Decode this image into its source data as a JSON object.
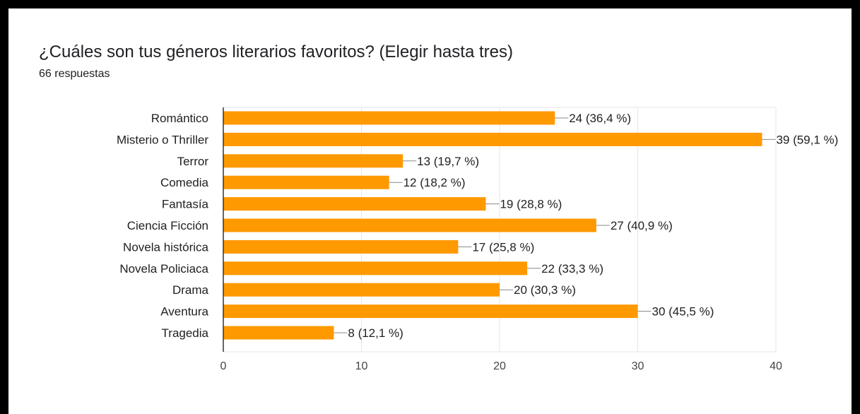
{
  "question": {
    "title": "¿Cuáles son tus géneros literarios favoritos? (Elegir hasta tres)",
    "responses": "66 respuestas"
  },
  "colors": {
    "bar": "#ff9900",
    "background": "#000000",
    "card": "#ffffff",
    "grid": "#e6e6e6",
    "text": "#202124",
    "axis_label": "#444444"
  },
  "chart_data": {
    "type": "bar",
    "orientation": "horizontal",
    "title": "",
    "xlabel": "",
    "ylabel": "",
    "xlim": [
      0,
      40
    ],
    "ticks": [
      0,
      10,
      20,
      30,
      40
    ],
    "grid": true,
    "categories": [
      "Romántico",
      "Misterio o Thriller",
      "Terror",
      "Comedia",
      "Fantasía",
      "Ciencia Ficción",
      "Novela histórica",
      "Novela Policiaca",
      "Drama",
      "Aventura",
      "Tragedia"
    ],
    "values": [
      24,
      39,
      13,
      12,
      19,
      27,
      17,
      22,
      20,
      30,
      8
    ],
    "data_labels": [
      "24 (36,4 %)",
      "39 (59,1 %)",
      "13 (19,7 %)",
      "12 (18,2 %)",
      "19 (28,8 %)",
      "27 (40,9 %)",
      "17 (25,8 %)",
      "22 (33,3 %)",
      "20 (30,3 %)",
      "30 (45,5 %)",
      "8 (12,1 %)"
    ]
  }
}
